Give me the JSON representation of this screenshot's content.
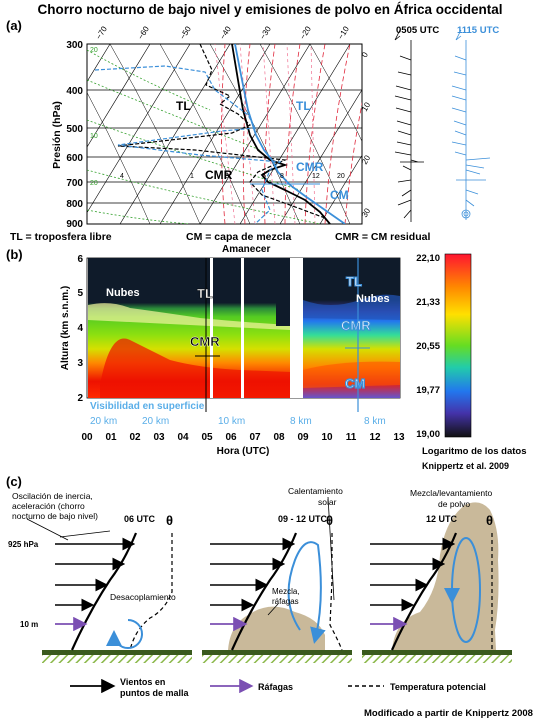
{
  "title": "Chorro nocturno de bajo nivel y emisiones de polvo en África occidental",
  "panel_a": {
    "label": "(a)",
    "y_axis_title": "Presión (hPa)",
    "pressure_ticks": [
      "300",
      "400",
      "500",
      "600",
      "700",
      "800",
      "900"
    ],
    "temp_ticks": [
      "−70",
      "−60",
      "−50",
      "−40",
      "−30",
      "−20",
      "−10"
    ],
    "isotherm_labels": [
      "0",
      "10",
      "20",
      "30"
    ],
    "mixing_labels": [
      "4",
      "1",
      "3",
      "5",
      "8",
      "12",
      "20"
    ],
    "green_labels": [
      "20",
      "10",
      "20"
    ],
    "labels": {
      "tl_black": "TL",
      "tl_blue": "TL",
      "cmr_black": "CMR",
      "cmr_blue": "CMR",
      "cm_blue": "CM"
    },
    "wind_times": {
      "black": "0505 UTC",
      "blue": "1115 UTC"
    },
    "colors": {
      "black_profile": "#000000",
      "blue_profile": "#3b8fd9"
    }
  },
  "legend_a": {
    "tl": "TL = troposfera libre",
    "cm": "CM = capa de mezcla",
    "cmr": "CMR = CM residual"
  },
  "panel_b": {
    "label": "(b)",
    "amanecer": "Amanecer",
    "y_axis_title": "Altura (km s.n.m.)",
    "height_ticks": [
      "2",
      "3",
      "4",
      "5",
      "6"
    ],
    "x_axis_title": "Hora (UTC)",
    "hour_ticks": [
      "00",
      "01",
      "02",
      "03",
      "04",
      "05",
      "06",
      "07",
      "08",
      "09",
      "10",
      "11",
      "12",
      "13"
    ],
    "labels": {
      "nubes_left": "Nubes",
      "nubes_right": "Nubes",
      "tl_left": "TL",
      "tl_right": "TL",
      "cmr_left": "CMR",
      "cmr_right": "CMR",
      "cm_right": "CM"
    },
    "visibility": {
      "title": "Visibilidad en superficie",
      "v1": "20 km",
      "v2": "20 km",
      "v3": "10 km",
      "v4": "8 km",
      "v5": "8 km"
    },
    "colorbar": {
      "ticks": [
        "22,10",
        "21,33",
        "20,55",
        "19,77",
        "19,00"
      ],
      "title": "Logaritmo de los datos"
    },
    "credit": "Knippertz et al. 2009"
  },
  "panel_c": {
    "label": "(c)",
    "theta": "θ",
    "oscilacion": [
      "Oscilación de inercia,",
      "aceleración (chorro",
      "nocturno de bajo nivel)"
    ],
    "hpa925": "925 hPa",
    "m10": "10 m",
    "t1": "06 UTC",
    "t2": "09 - 12 UTC",
    "t3": "12 UTC",
    "calentamiento": [
      "Calentamiento",
      "solar"
    ],
    "mezcla_levant": [
      "Mezcla/levantamiento",
      "de polvo"
    ],
    "desacoplamiento": "Desacoplamiento",
    "mezcla_rafagas": [
      "Mezcla,",
      "ráfagas"
    ],
    "legend": {
      "vientos": [
        "Vientos en",
        "puntos de malla"
      ],
      "rafagas": "Ráfagas",
      "temp": "Temperatura potencial"
    },
    "credit": "Modificado a partir de Knippertz 2008",
    "colors": {
      "ground": "#3a5a1e",
      "hatch": "#8bb84a",
      "dust": "#c9b99a",
      "blue_arrow": "#3b8fd9",
      "purple": "#7b4fb3"
    }
  }
}
